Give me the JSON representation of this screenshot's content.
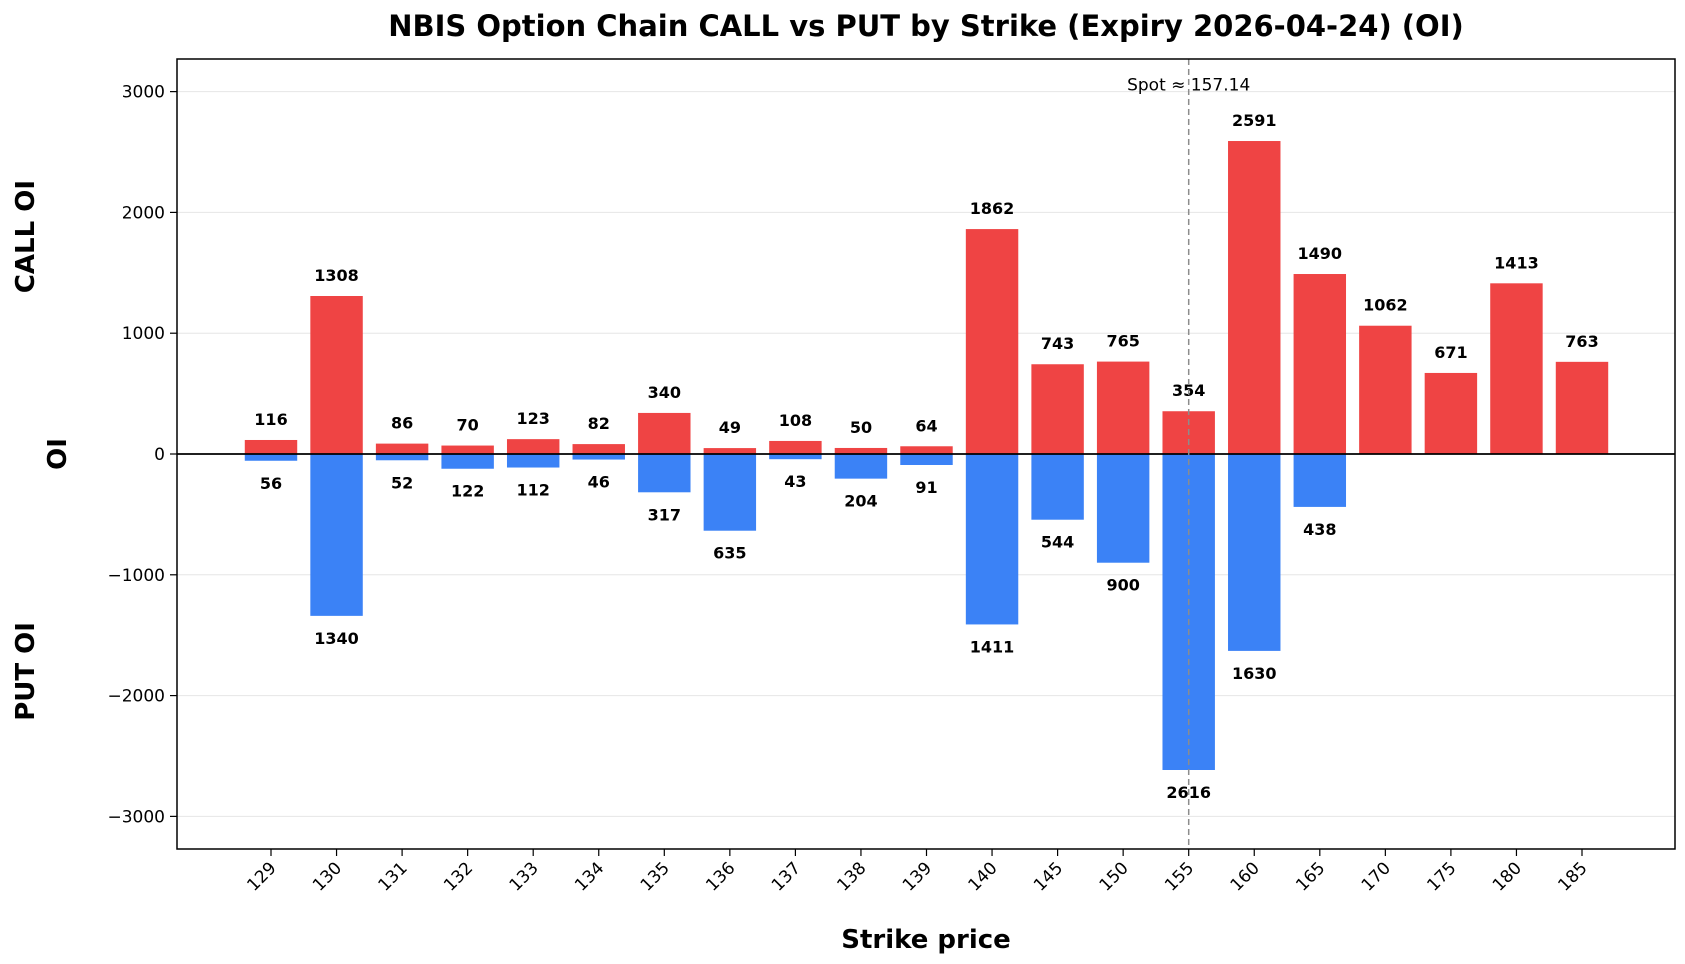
{
  "chart_data": {
    "type": "bar",
    "title": "NBIS Option Chain CALL vs PUT by Strike (Expiry 2026-04-24) (OI)",
    "xlabel": "Strike price",
    "ylabel": "OI",
    "side_labels": {
      "top": "CALL OI",
      "bottom": "PUT OI"
    },
    "categories": [
      "129",
      "130",
      "131",
      "132",
      "133",
      "134",
      "135",
      "136",
      "137",
      "138",
      "139",
      "140",
      "145",
      "150",
      "155",
      "160",
      "165",
      "170",
      "175",
      "180",
      "185"
    ],
    "series": [
      {
        "name": "CALL",
        "color": "#ef4444",
        "values": [
          116,
          1308,
          86,
          70,
          123,
          82,
          340,
          49,
          108,
          50,
          64,
          1862,
          743,
          765,
          354,
          2591,
          1490,
          1062,
          671,
          1413,
          763
        ]
      },
      {
        "name": "PUT",
        "color": "#3b82f6",
        "values": [
          56,
          1340,
          52,
          122,
          112,
          46,
          317,
          635,
          43,
          204,
          91,
          1411,
          544,
          900,
          2616,
          1630,
          438,
          null,
          null,
          null,
          null
        ]
      }
    ],
    "ylim": [
      -3270,
      3270
    ],
    "yticks": [
      3000,
      2000,
      1000,
      0,
      -1000,
      -2000,
      -3000
    ],
    "ytick_labels": [
      "3000",
      "2000",
      "1000",
      "0",
      "−1000",
      "−2000",
      "−3000"
    ],
    "grid": true,
    "spot": {
      "value": 157.14,
      "label": "Spot ≈ 157.14",
      "position_between": [
        "155",
        "160"
      ],
      "fraction": 0.0
    }
  }
}
